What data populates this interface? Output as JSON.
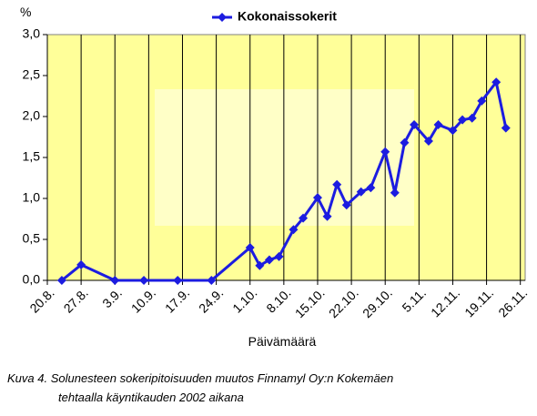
{
  "chart_data": {
    "type": "line",
    "y_unit": "%",
    "x_label": "Päivämäärä",
    "caption": [
      "Kuva 4. Solunesteen sokeripitoisuuden muutos Finnamyl Oy:n Kokemäen",
      "tehtaalla käyntikauden 2002 aikana"
    ],
    "x": [
      "08-23",
      "08-27",
      "09-03",
      "09-09",
      "09-16",
      "09-23",
      "10-01",
      "10-03",
      "10-05",
      "10-07",
      "10-10",
      "10-12",
      "10-15",
      "10-17",
      "10-19",
      "10-21",
      "10-24",
      "10-26",
      "10-29",
      "10-31",
      "11-02",
      "11-04",
      "11-07",
      "11-09",
      "11-12",
      "11-14",
      "11-16",
      "11-18",
      "11-21",
      "11-23"
    ],
    "series": [
      {
        "name": "Kokonaissokerit",
        "color": "#1c1ce0",
        "values": [
          0,
          0.19,
          0,
          0,
          0,
          0,
          0.4,
          0.18,
          0.25,
          0.29,
          0.62,
          0.76,
          1.01,
          0.78,
          1.17,
          0.92,
          1.08,
          1.13,
          1.57,
          1.07,
          1.68,
          1.9,
          1.7,
          1.9,
          1.83,
          1.96,
          1.98,
          2.19,
          2.42,
          1.86
        ]
      }
    ],
    "xlim": [
      "08-20",
      "11-27"
    ],
    "xticks": [
      {
        "value": "08-20",
        "label": "20.8."
      },
      {
        "value": "08-27",
        "label": "27.8."
      },
      {
        "value": "09-03",
        "label": "3.9."
      },
      {
        "value": "09-10",
        "label": "10.9."
      },
      {
        "value": "09-17",
        "label": "17.9."
      },
      {
        "value": "09-24",
        "label": "24.9."
      },
      {
        "value": "10-01",
        "label": "1.10."
      },
      {
        "value": "10-08",
        "label": "8.10."
      },
      {
        "value": "10-15",
        "label": "15.10."
      },
      {
        "value": "10-22",
        "label": "22.10."
      },
      {
        "value": "10-29",
        "label": "29.10."
      },
      {
        "value": "11-05",
        "label": "5.11."
      },
      {
        "value": "11-12",
        "label": "12.11."
      },
      {
        "value": "11-19",
        "label": "19.11."
      },
      {
        "value": "11-26",
        "label": "26.11."
      }
    ],
    "ylim": [
      0,
      3
    ],
    "yticks": [
      {
        "value": 0,
        "label": "0,0"
      },
      {
        "value": 0.5,
        "label": "0,5"
      },
      {
        "value": 1,
        "label": "1,0"
      },
      {
        "value": 1.5,
        "label": "1,5"
      },
      {
        "value": 2,
        "label": "2,0"
      },
      {
        "value": 2.5,
        "label": "2,5"
      },
      {
        "value": 3,
        "label": "3,0"
      }
    ],
    "grid": "x",
    "legend": "top",
    "background": "#ffff99"
  }
}
